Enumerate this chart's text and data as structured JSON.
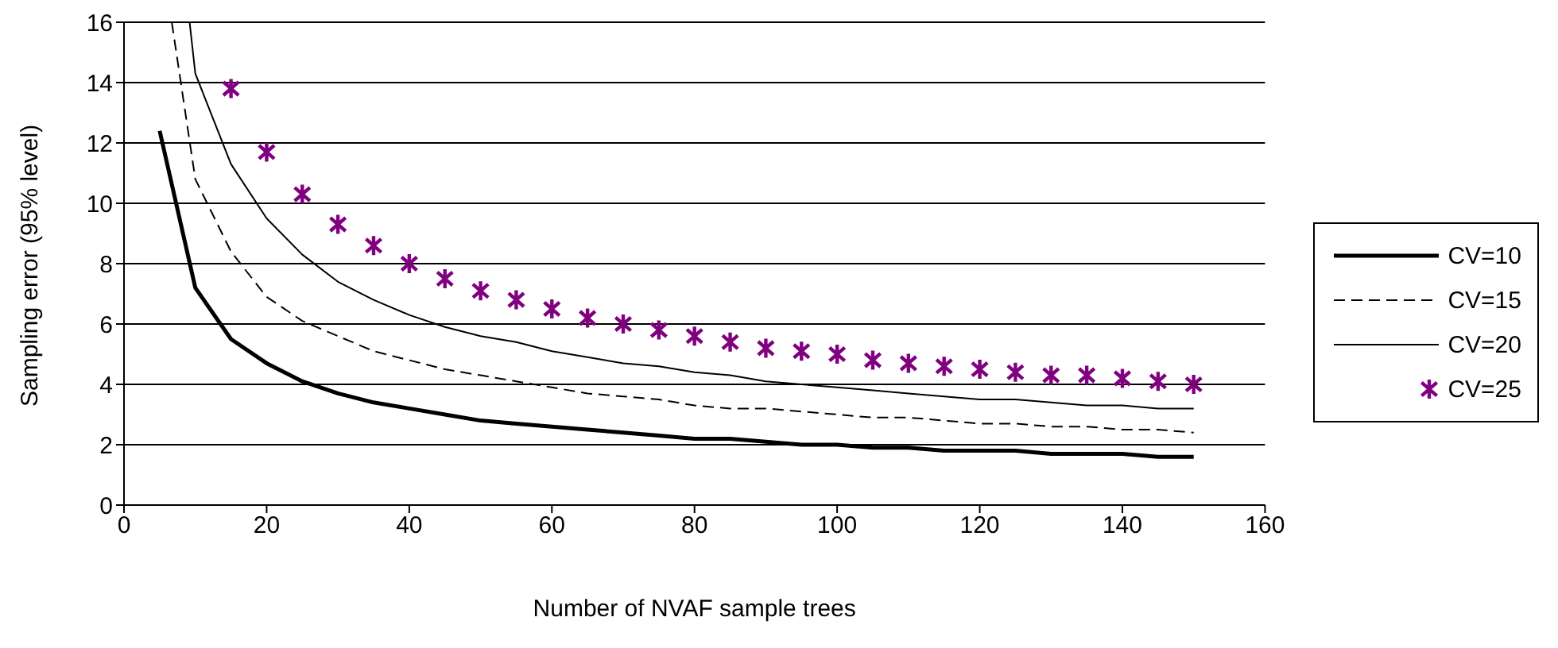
{
  "chart_data": {
    "type": "line",
    "xlabel": "Number of NVAF sample trees",
    "ylabel": "Sampling error (95% level)",
    "xlim": [
      0,
      160
    ],
    "xticks": [
      0,
      20,
      40,
      60,
      80,
      100,
      120,
      140,
      160
    ],
    "ylim": [
      0,
      16
    ],
    "yticks": [
      0,
      2,
      4,
      6,
      8,
      10,
      12,
      14,
      16
    ],
    "grid": "y",
    "legend": "right",
    "series": [
      {
        "name": "CV=10",
        "color": "#000000",
        "line_style": "solid",
        "marker": "none",
        "x": [
          5,
          10,
          15,
          20,
          25,
          30,
          35,
          40,
          45,
          50,
          55,
          60,
          65,
          70,
          75,
          80,
          85,
          90,
          95,
          100,
          105,
          110,
          115,
          120,
          125,
          130,
          135,
          140,
          145,
          150
        ],
        "values": [
          12.4,
          7.2,
          5.5,
          4.7,
          4.1,
          3.7,
          3.4,
          3.2,
          3.0,
          2.8,
          2.7,
          2.6,
          2.5,
          2.4,
          2.3,
          2.2,
          2.2,
          2.1,
          2.0,
          2.0,
          1.9,
          1.9,
          1.8,
          1.8,
          1.8,
          1.7,
          1.7,
          1.7,
          1.6,
          1.6
        ]
      },
      {
        "name": "CV=15",
        "color": "#000000",
        "line_style": "dashed",
        "marker": "none",
        "x": [
          6.7,
          10,
          15,
          20,
          25,
          30,
          35,
          40,
          45,
          50,
          55,
          60,
          65,
          70,
          75,
          80,
          85,
          90,
          95,
          100,
          105,
          110,
          115,
          120,
          125,
          130,
          135,
          140,
          145,
          150
        ],
        "values": [
          16,
          10.8,
          8.4,
          6.9,
          6.1,
          5.6,
          5.1,
          4.8,
          4.5,
          4.3,
          4.1,
          3.9,
          3.7,
          3.6,
          3.5,
          3.3,
          3.2,
          3.2,
          3.1,
          3.0,
          2.9,
          2.9,
          2.8,
          2.7,
          2.7,
          2.6,
          2.6,
          2.5,
          2.5,
          2.4
        ]
      },
      {
        "name": "CV=20",
        "color": "#000000",
        "line_style": "solid",
        "marker": "none",
        "x": [
          9.2,
          10,
          15,
          20,
          25,
          30,
          35,
          40,
          45,
          50,
          55,
          60,
          65,
          70,
          75,
          80,
          85,
          90,
          95,
          100,
          105,
          110,
          115,
          120,
          125,
          130,
          135,
          140,
          145,
          150
        ],
        "values": [
          16,
          14.3,
          11.3,
          9.5,
          8.3,
          7.4,
          6.8,
          6.3,
          5.9,
          5.6,
          5.4,
          5.1,
          4.9,
          4.7,
          4.6,
          4.4,
          4.3,
          4.1,
          4.0,
          3.9,
          3.8,
          3.7,
          3.6,
          3.5,
          3.5,
          3.4,
          3.3,
          3.3,
          3.2,
          3.2
        ]
      },
      {
        "name": "CV=25",
        "type": "scatter",
        "color": "#800080",
        "marker": "cross",
        "x": [
          15,
          20,
          25,
          30,
          35,
          40,
          45,
          50,
          55,
          60,
          65,
          70,
          75,
          80,
          85,
          90,
          95,
          100,
          105,
          110,
          115,
          120,
          125,
          130,
          135,
          140,
          145,
          150
        ],
        "values": [
          13.8,
          11.7,
          10.3,
          9.3,
          8.6,
          8.0,
          7.5,
          7.1,
          6.8,
          6.5,
          6.2,
          6.0,
          5.8,
          5.6,
          5.4,
          5.2,
          5.1,
          5.0,
          4.8,
          4.7,
          4.6,
          4.5,
          4.4,
          4.3,
          4.3,
          4.2,
          4.1,
          4.0
        ]
      }
    ]
  }
}
